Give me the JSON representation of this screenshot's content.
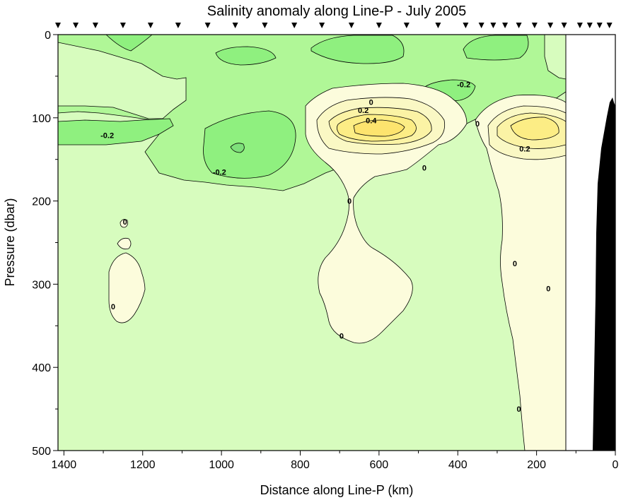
{
  "chart_data": {
    "type": "contour",
    "title": "Salinity anomaly along Line-P - July 2005",
    "xlabel": "Distance along Line-P (km)",
    "ylabel": "Pressure (dbar)",
    "x_axis": {
      "reversed": true,
      "range": [
        1415,
        0
      ],
      "ticks": [
        1400,
        1200,
        1000,
        800,
        600,
        400,
        200,
        0
      ]
    },
    "y_axis": {
      "reversed": true,
      "range": [
        0,
        500
      ],
      "ticks": [
        0,
        100,
        200,
        300,
        400,
        500
      ]
    },
    "station_markers_km": [
      1415,
      1370,
      1320,
      1250,
      1180,
      1110,
      1035,
      965,
      890,
      815,
      745,
      670,
      600,
      530,
      450,
      380,
      340,
      310,
      280,
      245,
      205,
      165,
      130,
      90,
      65,
      40,
      15
    ],
    "no_data_region_km": [
      0,
      130
    ],
    "contour_labels": [
      {
        "text": "-0.2",
        "x": 1290,
        "y": 121
      },
      {
        "text": "-0.2",
        "x": 1005,
        "y": 165
      },
      {
        "text": "-0.2",
        "x": 385,
        "y": 60
      },
      {
        "text": "0",
        "x": 620,
        "y": 81
      },
      {
        "text": "0.2",
        "x": 640,
        "y": 91
      },
      {
        "text": "0.4",
        "x": 620,
        "y": 103
      },
      {
        "text": "0",
        "x": 350,
        "y": 107
      },
      {
        "text": "0.2",
        "x": 230,
        "y": 137
      },
      {
        "text": "0",
        "x": 485,
        "y": 160
      },
      {
        "text": "0",
        "x": 675,
        "y": 200
      },
      {
        "text": "0",
        "x": 1245,
        "y": 225
      },
      {
        "text": "0",
        "x": 255,
        "y": 275
      },
      {
        "text": "0",
        "x": 170,
        "y": 305
      },
      {
        "text": "0",
        "x": 1275,
        "y": 327
      },
      {
        "text": "0",
        "x": 695,
        "y": 362
      },
      {
        "text": "0",
        "x": 245,
        "y": 450
      }
    ],
    "contour_levels": [
      -0.3,
      -0.2,
      -0.1,
      0,
      0.1,
      0.2,
      0.3,
      0.4
    ],
    "colors": {
      "lt_-0.2": "#8ff07f",
      "-0.2_to_-0.1": "#b0f797",
      "-0.1_to_0": "#d7fcbe",
      "0_to_0.1": "#fcfcdc",
      "0.1_to_0.2": "#faf8c4",
      "0.2_to_0.3": "#fbf3a5",
      "gt_0.3": "#fced85",
      "bathymetry": "#000000"
    }
  }
}
